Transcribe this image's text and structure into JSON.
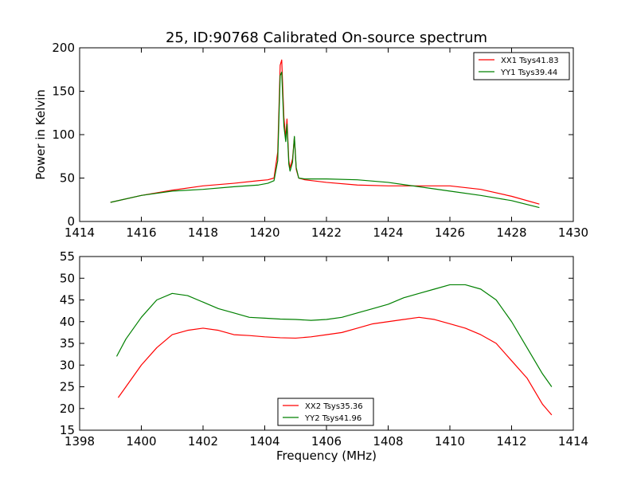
{
  "figure": {
    "title": "25, ID:90768 Calibrated On-source spectrum"
  },
  "chart_data": [
    {
      "type": "line",
      "ylabel": "Power in Kelvin",
      "xlabel": "",
      "xlim": [
        1414,
        1430
      ],
      "ylim": [
        0,
        200
      ],
      "xticks": [
        "1414",
        "1416",
        "1418",
        "1420",
        "1422",
        "1424",
        "1426",
        "1428",
        "1430"
      ],
      "yticks": [
        "0",
        "50",
        "100",
        "150",
        "200"
      ],
      "legend_position": "top-right",
      "grid": false,
      "series": [
        {
          "name": "XX1 Tsys41.83",
          "color": "#ff0000",
          "points": [
            [
              1415.0,
              22
            ],
            [
              1416.0,
              30
            ],
            [
              1417.0,
              36
            ],
            [
              1418.0,
              41
            ],
            [
              1419.0,
              44
            ],
            [
              1419.8,
              47
            ],
            [
              1420.1,
              48
            ],
            [
              1420.3,
              50
            ],
            [
              1420.42,
              80
            ],
            [
              1420.5,
              180
            ],
            [
              1420.55,
              186
            ],
            [
              1420.62,
              120
            ],
            [
              1420.68,
              96
            ],
            [
              1420.72,
              118
            ],
            [
              1420.78,
              70
            ],
            [
              1420.82,
              62
            ],
            [
              1420.9,
              72
            ],
            [
              1420.96,
              97
            ],
            [
              1421.02,
              60
            ],
            [
              1421.1,
              50
            ],
            [
              1421.3,
              48
            ],
            [
              1422.0,
              45
            ],
            [
              1423.0,
              42
            ],
            [
              1424.0,
              41
            ],
            [
              1425.0,
              41
            ],
            [
              1426.0,
              41
            ],
            [
              1427.0,
              37
            ],
            [
              1428.0,
              29
            ],
            [
              1428.9,
              20
            ]
          ]
        },
        {
          "name": "YY1 Tsys39.44",
          "color": "#008000",
          "points": [
            [
              1415.0,
              22
            ],
            [
              1416.0,
              30
            ],
            [
              1417.0,
              35
            ],
            [
              1418.0,
              37
            ],
            [
              1419.0,
              40
            ],
            [
              1419.8,
              42
            ],
            [
              1420.1,
              44
            ],
            [
              1420.3,
              47
            ],
            [
              1420.42,
              70
            ],
            [
              1420.5,
              168
            ],
            [
              1420.55,
              172
            ],
            [
              1420.62,
              110
            ],
            [
              1420.68,
              92
            ],
            [
              1420.72,
              112
            ],
            [
              1420.78,
              66
            ],
            [
              1420.82,
              58
            ],
            [
              1420.9,
              68
            ],
            [
              1420.96,
              98
            ],
            [
              1421.02,
              62
            ],
            [
              1421.1,
              50
            ],
            [
              1421.3,
              49
            ],
            [
              1422.0,
              49
            ],
            [
              1423.0,
              48
            ],
            [
              1424.0,
              45
            ],
            [
              1425.0,
              40
            ],
            [
              1426.0,
              35
            ],
            [
              1427.0,
              30
            ],
            [
              1428.0,
              24
            ],
            [
              1428.9,
              16
            ]
          ]
        }
      ]
    },
    {
      "type": "line",
      "xlabel": "Frequency (MHz)",
      "ylabel": "",
      "xlim": [
        1398,
        1414
      ],
      "ylim": [
        15,
        55
      ],
      "xticks": [
        "1398",
        "1400",
        "1402",
        "1404",
        "1406",
        "1408",
        "1410",
        "1412",
        "1414"
      ],
      "yticks": [
        "15",
        "20",
        "25",
        "30",
        "35",
        "40",
        "45",
        "50",
        "55"
      ],
      "legend_position": "bottom-center",
      "grid": false,
      "series": [
        {
          "name": "XX2 Tsys35.36",
          "color": "#ff0000",
          "points": [
            [
              1399.25,
              22.5
            ],
            [
              1399.5,
              25
            ],
            [
              1400.0,
              30
            ],
            [
              1400.5,
              34
            ],
            [
              1401.0,
              37
            ],
            [
              1401.5,
              38
            ],
            [
              1402.0,
              38.5
            ],
            [
              1402.5,
              38
            ],
            [
              1403.0,
              37
            ],
            [
              1403.5,
              36.8
            ],
            [
              1404.0,
              36.5
            ],
            [
              1404.5,
              36.3
            ],
            [
              1405.0,
              36.2
            ],
            [
              1405.5,
              36.5
            ],
            [
              1406.0,
              37
            ],
            [
              1406.5,
              37.5
            ],
            [
              1407.0,
              38.5
            ],
            [
              1407.5,
              39.5
            ],
            [
              1408.0,
              40
            ],
            [
              1408.5,
              40.5
            ],
            [
              1409.0,
              41
            ],
            [
              1409.5,
              40.5
            ],
            [
              1410.0,
              39.5
            ],
            [
              1410.5,
              38.5
            ],
            [
              1411.0,
              37
            ],
            [
              1411.5,
              35
            ],
            [
              1412.0,
              31
            ],
            [
              1412.5,
              27
            ],
            [
              1413.0,
              21
            ],
            [
              1413.3,
              18.5
            ]
          ]
        },
        {
          "name": "YY2 Tsys41.96",
          "color": "#008000",
          "points": [
            [
              1399.2,
              32
            ],
            [
              1399.5,
              36
            ],
            [
              1400.0,
              41
            ],
            [
              1400.5,
              45
            ],
            [
              1401.0,
              46.5
            ],
            [
              1401.5,
              46
            ],
            [
              1402.0,
              44.5
            ],
            [
              1402.5,
              43
            ],
            [
              1403.0,
              42
            ],
            [
              1403.5,
              41
            ],
            [
              1404.0,
              40.8
            ],
            [
              1404.5,
              40.6
            ],
            [
              1405.0,
              40.5
            ],
            [
              1405.5,
              40.3
            ],
            [
              1406.0,
              40.5
            ],
            [
              1406.5,
              41
            ],
            [
              1407.0,
              42
            ],
            [
              1407.5,
              43
            ],
            [
              1408.0,
              44
            ],
            [
              1408.5,
              45.5
            ],
            [
              1409.0,
              46.5
            ],
            [
              1409.5,
              47.5
            ],
            [
              1410.0,
              48.5
            ],
            [
              1410.5,
              48.5
            ],
            [
              1411.0,
              47.5
            ],
            [
              1411.5,
              45
            ],
            [
              1412.0,
              40
            ],
            [
              1412.5,
              34
            ],
            [
              1413.0,
              28
            ],
            [
              1413.3,
              25
            ]
          ]
        }
      ]
    }
  ]
}
